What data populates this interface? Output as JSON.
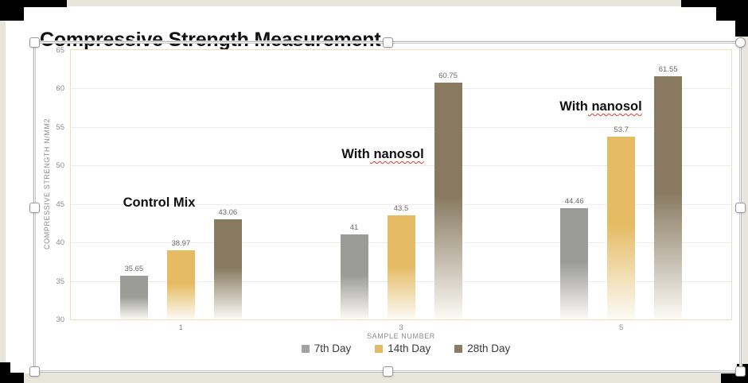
{
  "canvas": {
    "background": "#e8e5da",
    "slide_background": "#ffffff",
    "corner_color": "#000000"
  },
  "chart_data": {
    "type": "bar",
    "title": "Compressive Strength Measurement",
    "categories": [
      "1",
      "3",
      "5"
    ],
    "series": [
      {
        "name": "7th Day",
        "color": "#9b9b97",
        "legend_color": "#a3a39f",
        "values": [
          35.65,
          41,
          44.46
        ]
      },
      {
        "name": "14th Day",
        "color": "#e5bb63",
        "legend_color": "#e0ba66",
        "values": [
          38.97,
          43.5,
          53.7
        ]
      },
      {
        "name": "28th Day",
        "color": "#877a60",
        "legend_color": "#8a7c62",
        "values": [
          43.06,
          60.75,
          61.55
        ]
      }
    ],
    "xlabel": "SAMPLE NUMBER",
    "ylabel": "COMPRESSIVE STRENGTH N/MM2",
    "ylim": [
      30,
      65
    ],
    "ytick_step": 5,
    "grid": true,
    "legend_position": "bottom",
    "plot_border_color": "#f0ddbc",
    "gridline_color": "#ececea",
    "annotations": [
      {
        "text": "Control Mix",
        "x": 200,
        "y": 246,
        "squiggle_word": ""
      },
      {
        "text": "With nanosol",
        "x": 481,
        "y": 185,
        "squiggle_word": "nanosol"
      },
      {
        "text": "With nanosol",
        "x": 755,
        "y": 125,
        "squiggle_word": "nanosol"
      }
    ]
  }
}
